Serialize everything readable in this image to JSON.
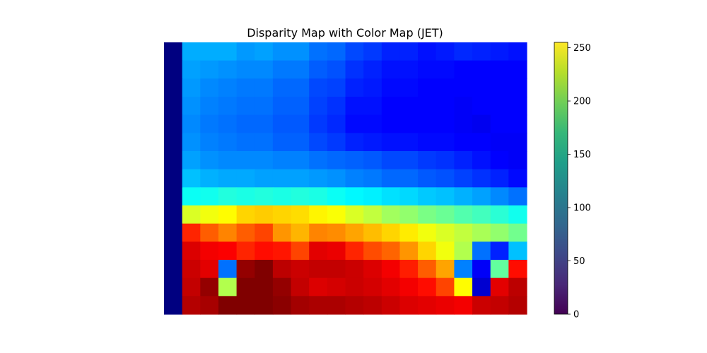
{
  "chart_data": {
    "type": "heatmap",
    "title": "Disparity Map with Color Map (JET)",
    "image_colormap": "jet",
    "colorbar_colormap": "viridis",
    "axes_visible": false,
    "colorbar": {
      "range": [
        0,
        255
      ],
      "ticks": [
        0,
        50,
        100,
        150,
        200,
        250
      ],
      "tick_labels": [
        "0",
        "50",
        "100",
        "150",
        "200",
        "250"
      ]
    },
    "grid": {
      "columns": 20,
      "rows": 15,
      "values": [
        [
          0,
          75,
          75,
          75,
          70,
          72,
          68,
          68,
          60,
          58,
          50,
          46,
          40,
          40,
          36,
          38,
          42,
          40,
          38,
          36
        ],
        [
          0,
          72,
          70,
          68,
          66,
          66,
          62,
          62,
          55,
          52,
          44,
          40,
          36,
          36,
          34,
          34,
          32,
          32,
          32,
          32
        ],
        [
          0,
          70,
          66,
          64,
          62,
          62,
          58,
          58,
          50,
          48,
          40,
          38,
          34,
          34,
          32,
          32,
          32,
          32,
          32,
          32
        ],
        [
          0,
          68,
          64,
          62,
          60,
          60,
          56,
          56,
          48,
          44,
          36,
          36,
          32,
          32,
          32,
          32,
          30,
          32,
          32,
          32
        ],
        [
          0,
          66,
          62,
          60,
          58,
          58,
          54,
          54,
          46,
          42,
          34,
          34,
          32,
          32,
          32,
          32,
          30,
          28,
          32,
          32
        ],
        [
          0,
          68,
          64,
          62,
          60,
          60,
          56,
          56,
          50,
          46,
          40,
          38,
          36,
          36,
          34,
          34,
          32,
          32,
          30,
          30
        ],
        [
          0,
          72,
          68,
          66,
          66,
          66,
          64,
          64,
          60,
          58,
          56,
          54,
          50,
          50,
          46,
          44,
          40,
          36,
          32,
          30
        ],
        [
          0,
          80,
          76,
          74,
          74,
          72,
          72,
          72,
          70,
          68,
          64,
          62,
          58,
          58,
          54,
          52,
          48,
          44,
          40,
          34
        ],
        [
          0,
          98,
          100,
          104,
          102,
          104,
          102,
          104,
          102,
          98,
          94,
          92,
          88,
          86,
          82,
          80,
          76,
          72,
          66,
          60
        ],
        [
          0,
          150,
          156,
          160,
          170,
          172,
          170,
          168,
          162,
          158,
          150,
          144,
          136,
          132,
          126,
          122,
          116,
          112,
          106,
          100
        ],
        [
          0,
          214,
          200,
          190,
          200,
          206,
          186,
          178,
          190,
          188,
          182,
          176,
          170,
          164,
          156,
          150,
          144,
          138,
          132,
          124
        ],
        [
          0,
          232,
          226,
          224,
          214,
          220,
          218,
          206,
          230,
          228,
          214,
          204,
          198,
          186,
          170,
          156,
          140,
          60,
          40,
          80
        ],
        [
          0,
          236,
          230,
          60,
          250,
          255,
          240,
          236,
          238,
          238,
          236,
          232,
          226,
          216,
          200,
          182,
          64,
          30,
          120,
          220
        ],
        [
          0,
          238,
          250,
          140,
          255,
          255,
          250,
          238,
          232,
          234,
          236,
          234,
          230,
          226,
          220,
          206,
          160,
          20,
          230,
          240
        ],
        [
          0,
          242,
          245,
          255,
          255,
          255,
          252,
          246,
          244,
          244,
          242,
          240,
          236,
          232,
          230,
          228,
          226,
          236,
          238,
          242
        ]
      ]
    }
  }
}
